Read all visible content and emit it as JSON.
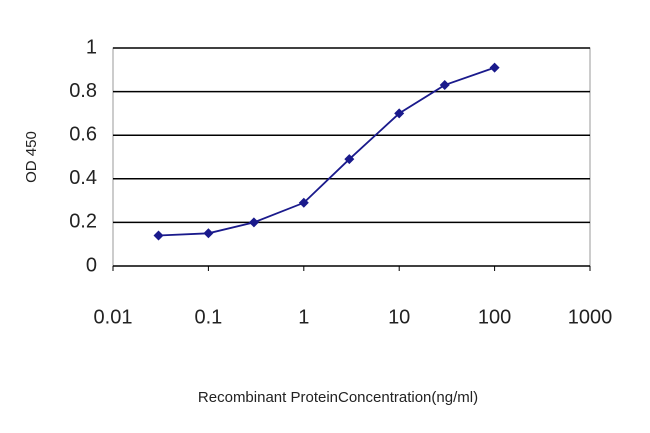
{
  "chart_data": {
    "type": "line",
    "xlabel": "Recombinant ProteinConcentration(ng/ml)",
    "ylabel": "OD 450",
    "xscale": "log",
    "x": [
      0.03,
      0.1,
      0.3,
      1,
      3,
      10,
      30,
      100
    ],
    "series": [
      {
        "name": "OD 450",
        "color": "#1a1a8c",
        "values": [
          0.14,
          0.15,
          0.2,
          0.29,
          0.49,
          0.7,
          0.83,
          0.91
        ]
      }
    ],
    "xlim": [
      0.01,
      1000
    ],
    "xticks": [
      0.01,
      0.1,
      1,
      10,
      100,
      1000
    ],
    "ylim": [
      0,
      1
    ],
    "yticks": [
      0,
      0.2,
      0.4,
      0.6,
      0.8,
      1
    ],
    "grid": true
  }
}
